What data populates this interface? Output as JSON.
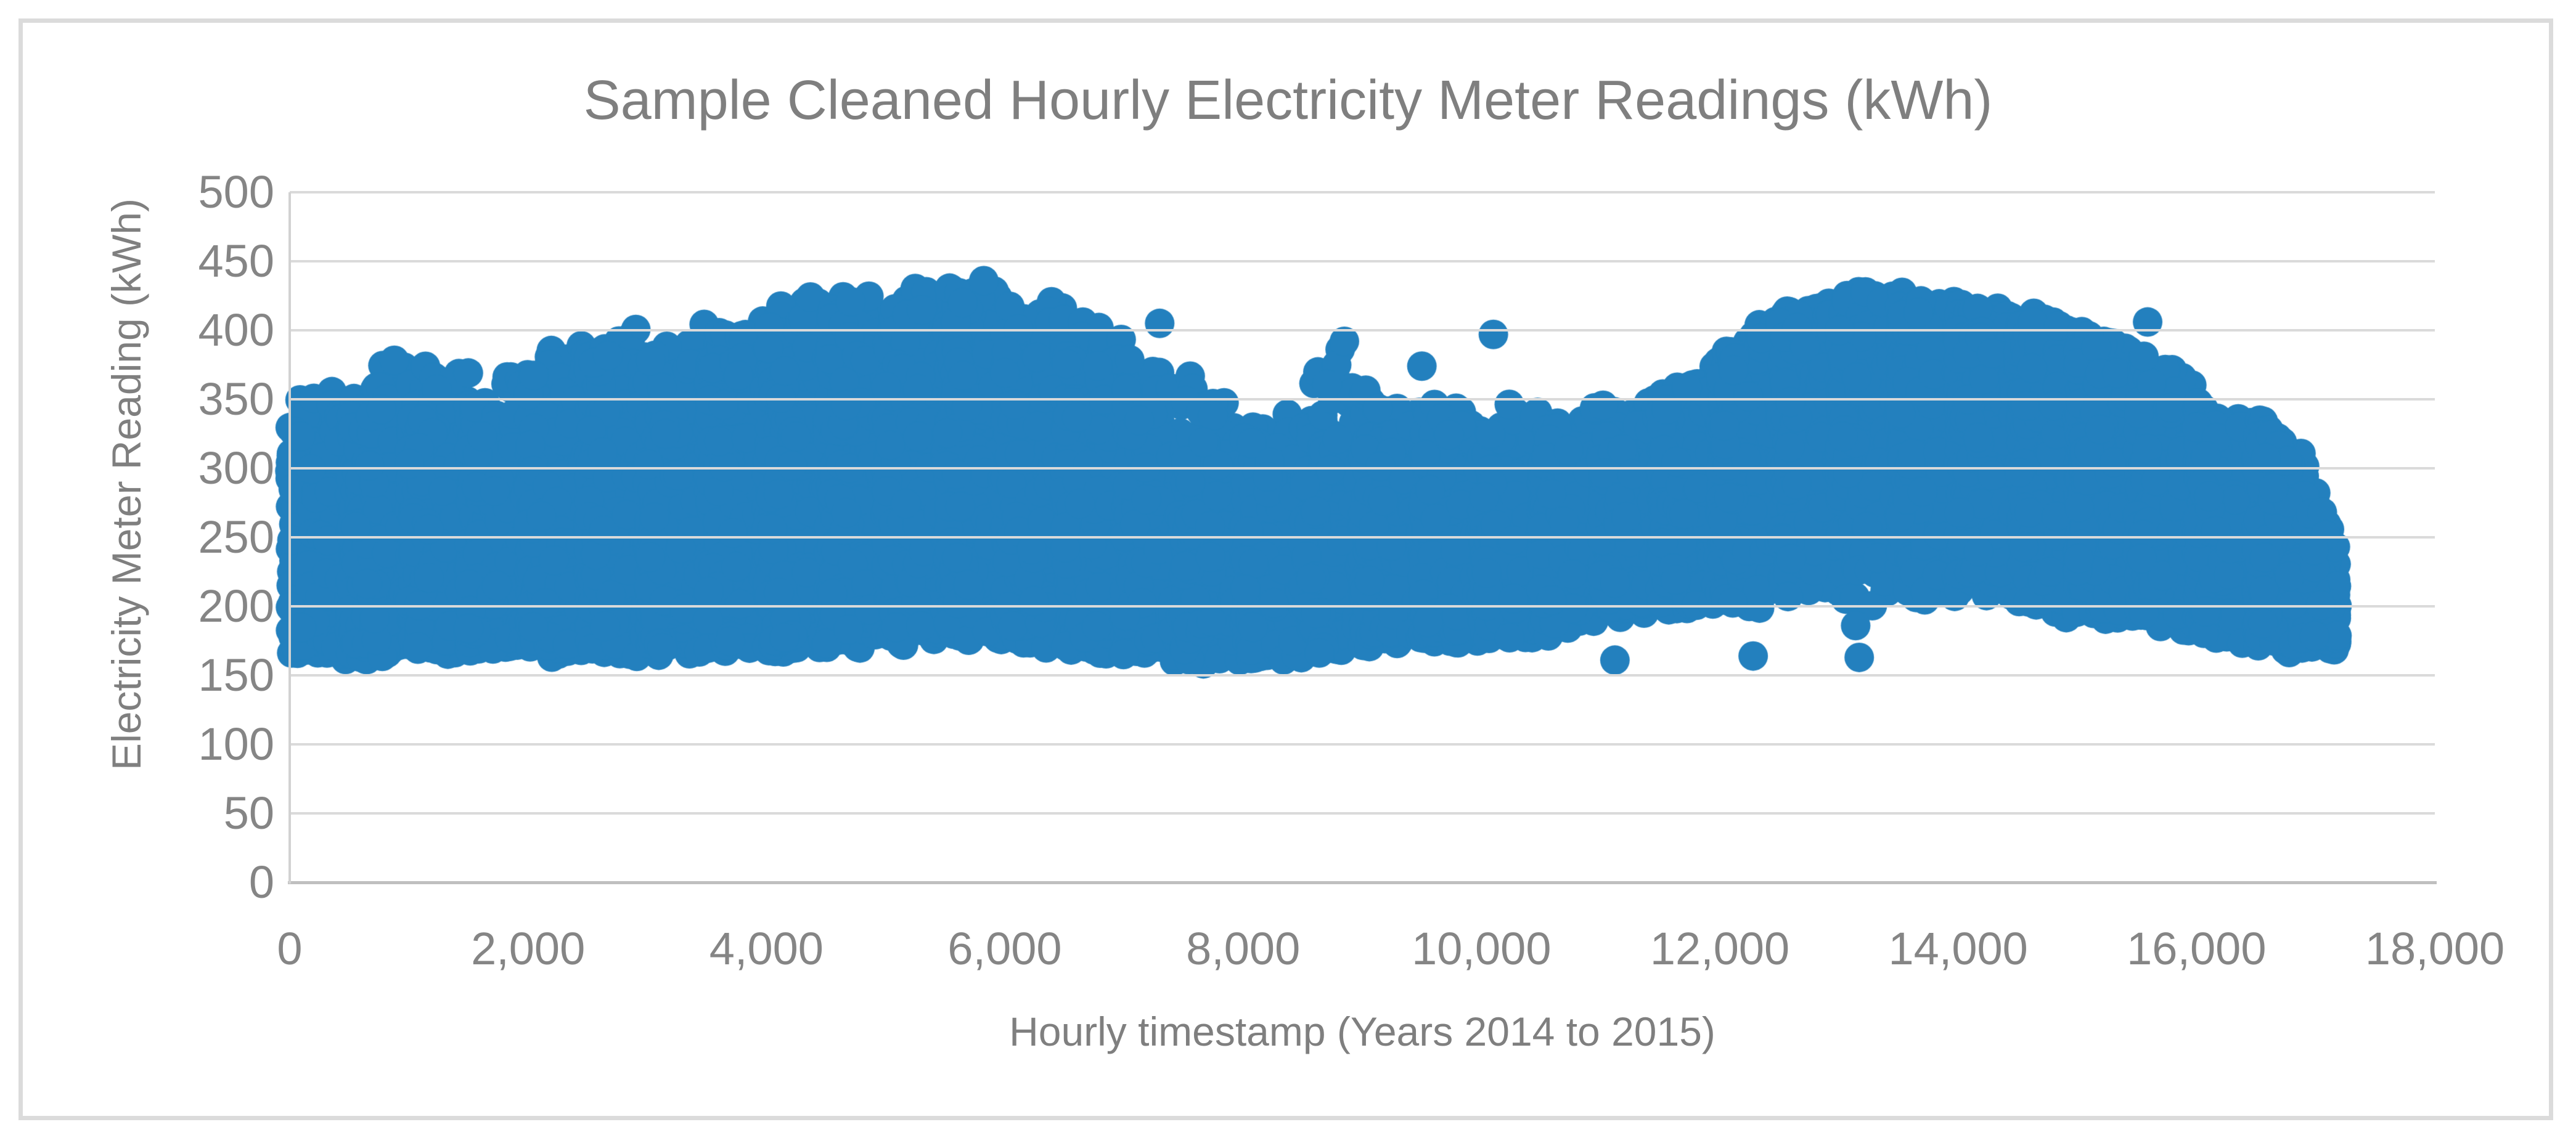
{
  "chart_data": {
    "type": "scatter",
    "title": "Sample Cleaned Hourly Electricity Meter Readings (kWh)",
    "xlabel": "Hourly timestamp (Years 2014 to 2015)",
    "ylabel": "Electricity Meter Reading (kWh)",
    "xlim": [
      0,
      18000
    ],
    "ylim": [
      0,
      500
    ],
    "grid": "horizontal-only",
    "legend": "none",
    "x_ticks": [
      0,
      2000,
      4000,
      6000,
      8000,
      10000,
      12000,
      14000,
      16000,
      18000
    ],
    "x_tick_labels": [
      "0",
      "2,000",
      "4,000",
      "6,000",
      "8,000",
      "10,000",
      "12,000",
      "14,000",
      "16,000",
      "18,000"
    ],
    "y_ticks": [
      0,
      50,
      100,
      150,
      200,
      250,
      300,
      350,
      400,
      450,
      500
    ],
    "y_tick_labels": [
      "0",
      "50",
      "100",
      "150",
      "200",
      "250",
      "300",
      "350",
      "400",
      "450",
      "500"
    ],
    "colors": {
      "marker": "#2380be",
      "gridline": "#dadada",
      "axis_line": "#bfbfbf",
      "text": "#7f7f7f",
      "border": "#dbdbdb"
    },
    "series": [
      {
        "name": "Hourly electricity meter reading",
        "marker": "circle",
        "marker_radius_px": 24,
        "x_range": [
          0,
          17180
        ],
        "y_range_observed": [
          157,
          441
        ],
        "synthesis": {
          "seed": 420144,
          "envelope_upper": [
            [
              0,
              372
            ],
            [
              250,
              360
            ],
            [
              500,
              372
            ],
            [
              900,
              390
            ],
            [
              1200,
              378
            ],
            [
              1600,
              372
            ],
            [
              1900,
              380
            ],
            [
              2200,
              392
            ],
            [
              2700,
              404
            ],
            [
              3100,
              400
            ],
            [
              3500,
              406
            ],
            [
              3900,
              418
            ],
            [
              4300,
              426
            ],
            [
              4700,
              430
            ],
            [
              5000,
              434
            ],
            [
              5400,
              431
            ],
            [
              5700,
              441
            ],
            [
              6000,
              431
            ],
            [
              6400,
              424
            ],
            [
              6800,
              410
            ],
            [
              7100,
              397
            ],
            [
              7500,
              372
            ],
            [
              7900,
              354
            ],
            [
              8300,
              344
            ],
            [
              8650,
              388
            ],
            [
              8900,
              392
            ],
            [
              9100,
              362
            ],
            [
              9400,
              367
            ],
            [
              9700,
              352
            ],
            [
              10000,
              353
            ],
            [
              10300,
              350
            ],
            [
              10700,
              344
            ],
            [
              11000,
              348
            ],
            [
              11300,
              352
            ],
            [
              11600,
              363
            ],
            [
              11900,
              385
            ],
            [
              12200,
              400
            ],
            [
              12500,
              414
            ],
            [
              12900,
              424
            ],
            [
              13300,
              431
            ],
            [
              13700,
              429
            ],
            [
              14000,
              421
            ],
            [
              14400,
              417
            ],
            [
              14800,
              412
            ],
            [
              15100,
              400
            ],
            [
              15400,
              392
            ],
            [
              15800,
              373
            ],
            [
              16100,
              352
            ],
            [
              16400,
              341
            ],
            [
              16650,
              346
            ],
            [
              16900,
              311
            ],
            [
              17050,
              286
            ],
            [
              17180,
              258
            ]
          ],
          "envelope_lower": [
            [
              0,
              163
            ],
            [
              500,
              160
            ],
            [
              1000,
              162
            ],
            [
              1500,
              165
            ],
            [
              2000,
              163
            ],
            [
              2500,
              162
            ],
            [
              3000,
              162
            ],
            [
              3500,
              163
            ],
            [
              4000,
              165
            ],
            [
              4500,
              168
            ],
            [
              5000,
              170
            ],
            [
              5500,
              175
            ],
            [
              6000,
              172
            ],
            [
              6500,
              168
            ],
            [
              7000,
              163
            ],
            [
              7400,
              158
            ],
            [
              7800,
              157
            ],
            [
              8200,
              161
            ],
            [
              8600,
              160
            ],
            [
              9000,
              169
            ],
            [
              9500,
              172
            ],
            [
              10000,
              173
            ],
            [
              10500,
              177
            ],
            [
              11000,
              188
            ],
            [
              11400,
              194
            ],
            [
              11800,
              197
            ],
            [
              12200,
              198
            ],
            [
              12600,
              200
            ],
            [
              13000,
              200
            ],
            [
              13500,
              198
            ],
            [
              14000,
              196
            ],
            [
              14500,
              193
            ],
            [
              15000,
              190
            ],
            [
              15500,
              185
            ],
            [
              16000,
              176
            ],
            [
              16500,
              168
            ],
            [
              16800,
              166
            ],
            [
              17180,
              165
            ]
          ],
          "density_bins": [
            [
              0,
              500,
              360
            ],
            [
              500,
              1000,
              360
            ],
            [
              1000,
              1500,
              350
            ],
            [
              1500,
              2000,
              340
            ],
            [
              2000,
              2500,
              350
            ],
            [
              2500,
              3000,
              350
            ],
            [
              3000,
              3500,
              355
            ],
            [
              3500,
              4000,
              360
            ],
            [
              4000,
              4500,
              365
            ],
            [
              4500,
              5000,
              365
            ],
            [
              5000,
              5500,
              360
            ],
            [
              5500,
              6000,
              355
            ],
            [
              6000,
              6500,
              345
            ],
            [
              6500,
              7000,
              335
            ],
            [
              7000,
              7500,
              270
            ],
            [
              7500,
              8000,
              235
            ],
            [
              8000,
              8500,
              225
            ],
            [
              8500,
              9000,
              245
            ],
            [
              9000,
              9500,
              265
            ],
            [
              9500,
              10000,
              265
            ],
            [
              10000,
              10500,
              265
            ],
            [
              10500,
              11000,
              265
            ],
            [
              11000,
              11500,
              285
            ],
            [
              11500,
              12000,
              325
            ],
            [
              12000,
              12500,
              345
            ],
            [
              12500,
              13000,
              365
            ],
            [
              13000,
              13500,
              375
            ],
            [
              13500,
              14000,
              375
            ],
            [
              14000,
              14500,
              365
            ],
            [
              14500,
              15000,
              365
            ],
            [
              15000,
              15500,
              355
            ],
            [
              15500,
              16000,
              345
            ],
            [
              16000,
              16500,
              335
            ],
            [
              16500,
              17180,
              380
            ]
          ],
          "vertical_skew": [
            [
              0,
              -0.25
            ],
            [
              3000,
              -0.2
            ],
            [
              5500,
              -0.05
            ],
            [
              7000,
              -0.2
            ],
            [
              8000,
              -0.35
            ],
            [
              10000,
              -0.3
            ],
            [
              11500,
              -0.1
            ],
            [
              12500,
              0.15
            ],
            [
              13500,
              0.25
            ],
            [
              14500,
              0.2
            ],
            [
              15500,
              0.05
            ],
            [
              16200,
              -0.05
            ],
            [
              17180,
              -0.15
            ]
          ],
          "outliers": [
            [
              7300,
              405
            ],
            [
              8850,
              392
            ],
            [
              9500,
              374
            ],
            [
              10100,
              397
            ],
            [
              11120,
              161
            ],
            [
              12280,
              164
            ],
            [
              13140,
              186
            ],
            [
              13170,
              163
            ],
            [
              15590,
              406
            ]
          ],
          "top_erosion": 22,
          "bottom_erosion": 14
        }
      }
    ]
  }
}
